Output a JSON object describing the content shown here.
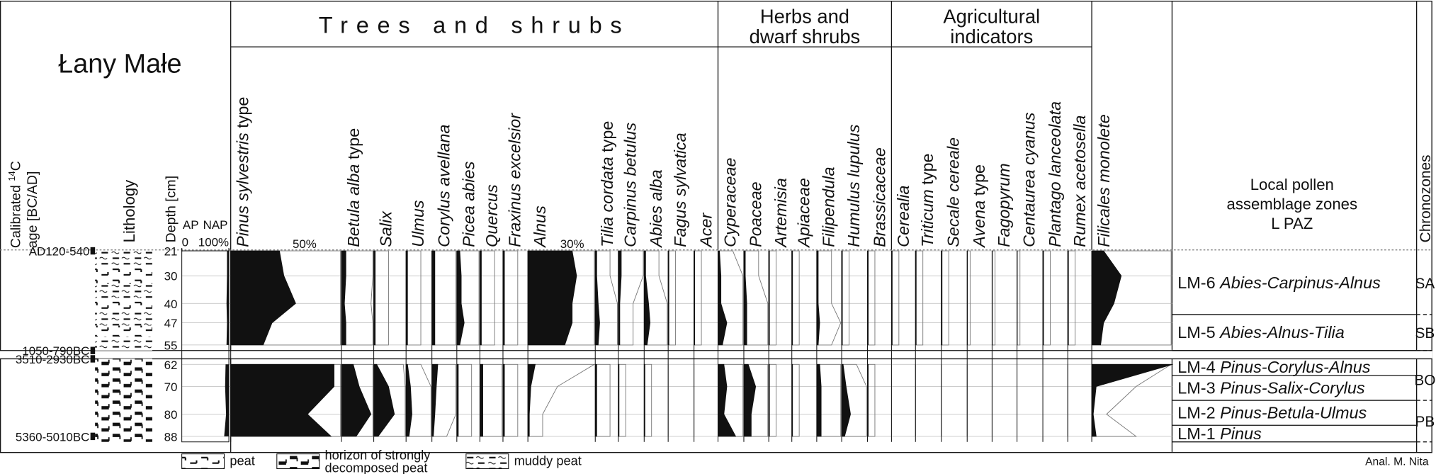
{
  "chart_data": {
    "type": "pollen",
    "title": "Łany Małe",
    "age_label": {
      "prefix": "Calibrated ",
      "sup": "14",
      "suffix": "C",
      "line2": "age [BC/AD]"
    },
    "lithology_label": "Lithology",
    "depth_label": "Depth [cm]",
    "ap_labels": [
      "AP",
      "NAP"
    ],
    "ap_ticks": [
      0,
      {
        "value": 100,
        "label": "100%"
      }
    ],
    "depths": [
      21,
      30,
      40,
      47,
      55,
      62,
      70,
      80,
      88
    ],
    "ylim": [
      21,
      90
    ],
    "hiatus": [
      57,
      60
    ],
    "ap": [
      96,
      96,
      95,
      96,
      95,
      93,
      92,
      94,
      90
    ],
    "dates": [
      {
        "label": "AD120-540",
        "depth": 21
      },
      {
        "label": "1050-790BC",
        "depth": 57
      },
      {
        "label": "3510-2930BC",
        "depth": 60
      },
      {
        "label": "5360-5010BC",
        "depth": 88
      }
    ],
    "lithology": [
      {
        "type": 2,
        "top": 21,
        "bottom": 27
      },
      {
        "type": 0,
        "top": 27,
        "bottom": 33
      },
      {
        "type": 2,
        "top": 33,
        "bottom": 38
      },
      {
        "type": 0,
        "top": 38,
        "bottom": 43
      },
      {
        "type": 2,
        "top": 43,
        "bottom": 48
      },
      {
        "type": 0,
        "top": 48,
        "bottom": 52
      },
      {
        "type": 2,
        "top": 52,
        "bottom": 57
      },
      {
        "type": 1,
        "top": 60,
        "bottom": 90
      }
    ],
    "groups": [
      {
        "lines": [
          "Trees and shrubs"
        ],
        "taxa": [
          {
            "name": "Pinus sylvestris",
            "suffix": "type",
            "scale_label": {
              "value": 50,
              "label": "50%"
            },
            "values": [
              33,
              36,
              44,
              28,
              22,
              70,
              70,
              52,
              68
            ]
          },
          {
            "name": "Betula alba",
            "suffix": "type",
            "values": [
              3,
              3,
              2,
              3,
              3,
              8,
              12,
              20,
              10
            ]
          },
          {
            "name": "Salix",
            "values": [
              1,
              1,
              1,
              1,
              1,
              2,
              10,
              14,
              3
            ]
          },
          {
            "name": "Ulmus",
            "values": [
              1,
              1,
              1,
              1,
              1,
              1,
              3,
              4,
              2
            ]
          },
          {
            "name": "Corylus avellana",
            "values": [
              2,
              2,
              2,
              2,
              2,
              4,
              3,
              2,
              1
            ]
          },
          {
            "name": "Picea abies",
            "values": [
              2,
              3,
              3,
              5,
              2,
              1,
              1,
              1,
              1
            ]
          },
          {
            "name": "Quercus",
            "values": [
              1,
              1,
              1,
              1,
              1,
              2,
              2,
              2,
              2
            ]
          },
          {
            "name": "Fraxinus excelsior",
            "values": [
              1,
              1,
              1,
              1,
              1,
              1,
              1,
              1,
              1
            ]
          },
          {
            "name": "Alnus",
            "scale_label": {
              "value": 30,
              "label": "30%"
            },
            "values": [
              30,
              33,
              30,
              30,
              25,
              5,
              2,
              1,
              1
            ]
          },
          {
            "name": "Tilia cordata",
            "suffix": "type",
            "values": [
              1,
              1,
              2,
              3,
              2,
              1,
              1,
              1,
              1
            ]
          },
          {
            "name": "Carpinus betulus",
            "values": [
              2,
              2,
              1,
              1,
              1,
              0.5,
              0.5,
              0.5,
              0.5
            ]
          },
          {
            "name": "Abies alba",
            "values": [
              1,
              1,
              3,
              4,
              2,
              0.5,
              0.5,
              0.5,
              0.5
            ]
          },
          {
            "name": "Fagus sylvatica",
            "values": [
              0.5,
              0.5,
              0.5,
              0.5,
              0.5,
              0,
              0,
              0,
              0
            ]
          },
          {
            "name": "Acer",
            "values": [
              0.5,
              0.5,
              0.5,
              0.5,
              0.5,
              0,
              0,
              0,
              0
            ]
          }
        ]
      },
      {
        "lines": [
          "Herbs and",
          "dwarf shrubs"
        ],
        "taxa": [
          {
            "name": "Cyperaceae",
            "values": [
              1,
              2,
              2,
              6,
              3,
              4,
              6,
              4,
              12
            ]
          },
          {
            "name": "Poaceae",
            "values": [
              1,
              1,
              2,
              2,
              2,
              3,
              8,
              5,
              5
            ]
          },
          {
            "name": "Artemisia",
            "values": [
              0.5,
              0.5,
              0.5,
              0.5,
              0.5,
              0.5,
              0.5,
              0.5,
              0.5
            ]
          },
          {
            "name": "Apiaceae",
            "values": [
              0.5,
              0.5,
              0.5,
              0.5,
              0.5,
              0.5,
              0.5,
              0.5,
              0.5
            ]
          },
          {
            "name": "Filipendula",
            "values": [
              1,
              1,
              1,
              2,
              1,
              2,
              3,
              3,
              3
            ]
          },
          {
            "name": "Humulus lupulus",
            "values": [
              0.5,
              0.5,
              0.5,
              0.5,
              0.5,
              1,
              3,
              6,
              2
            ]
          },
          {
            "name": "Brassicaceae",
            "values": [
              0.5,
              0.5,
              0.5,
              0.5,
              0.5,
              0.5,
              0.5,
              0.5,
              0.5
            ]
          }
        ]
      },
      {
        "lines": [
          "Agricultural",
          "indicators"
        ],
        "taxa": [
          {
            "name": "Cerealia",
            "values": [
              0.5,
              0.5,
              0.5,
              0.5,
              0.5,
              0,
              0,
              0,
              0
            ]
          },
          {
            "name": "Triticum",
            "suffix": "type",
            "values": [
              0.5,
              0.5,
              0.5,
              0.5,
              0.5,
              0,
              0,
              0,
              0
            ]
          },
          {
            "name": "Secale cereale",
            "values": [
              0.5,
              0.5,
              0.5,
              0.5,
              0.5,
              0,
              0,
              0,
              0
            ]
          },
          {
            "name": "Avena",
            "suffix": "type",
            "values": [
              0.2,
              0.2,
              0.2,
              0.2,
              0.2,
              0,
              0,
              0,
              0
            ]
          },
          {
            "name": "Fagopyrum",
            "values": [
              0.2,
              0.2,
              0.2,
              0.2,
              0.2,
              0,
              0,
              0,
              0
            ]
          },
          {
            "name": "Centaurea cyanus",
            "values": [
              0.2,
              0.2,
              0.2,
              0.2,
              0.2,
              0,
              0,
              0,
              0
            ]
          },
          {
            "name": "Plantago lanceolata",
            "values": [
              0.5,
              0.5,
              0.5,
              0.5,
              0.5,
              0,
              0,
              0,
              0
            ]
          },
          {
            "name": "Rumex acetosella",
            "values": [
              0.5,
              0.5,
              0.5,
              0.5,
              0.5,
              0,
              0,
              0,
              0
            ]
          }
        ]
      }
    ],
    "filicales": {
      "name": "Filicales monolete",
      "values": [
        8,
        20,
        15,
        8,
        6,
        55,
        3,
        1,
        3
      ]
    },
    "zones_label": [
      "Local pollen",
      "assemblage zones",
      "L PAZ"
    ],
    "zones": [
      {
        "code": "LM-6",
        "name": "Abies-Carpinus-Alnus",
        "top": 21,
        "bottom": 44
      },
      {
        "code": "LM-5",
        "name": "Abies-Alnus-Tilia",
        "top": 44,
        "bottom": 57
      },
      {
        "code": "LM-4",
        "name": "Pinus-Corylus-Alnus",
        "top": 60,
        "bottom": 66
      },
      {
        "code": "LM-3",
        "name": "Pinus-Salix-Corylus",
        "top": 66,
        "bottom": 75
      },
      {
        "code": "LM-2",
        "name": "Pinus-Betula-Ulmus",
        "top": 75,
        "bottom": 84
      },
      {
        "code": "LM-1",
        "name": "Pinus",
        "top": 84,
        "bottom": 90
      }
    ],
    "chronozones_label": "Chronozones",
    "chronozones": [
      {
        "name": "SA",
        "top": 21,
        "bottom": 44
      },
      {
        "name": "SB",
        "top": 44,
        "bottom": 57
      },
      {
        "name": "BO",
        "top": 60,
        "bottom": 75
      },
      {
        "name": "PB",
        "top": 75,
        "bottom": 90
      }
    ],
    "legend": [
      {
        "type": 0,
        "lines": [
          "peat"
        ]
      },
      {
        "type": 1,
        "lines": [
          "horizon of strongly",
          "decomposed peat"
        ]
      },
      {
        "type": 2,
        "lines": [
          "muddy peat"
        ]
      }
    ],
    "credit": "Anal. M. Nita"
  }
}
